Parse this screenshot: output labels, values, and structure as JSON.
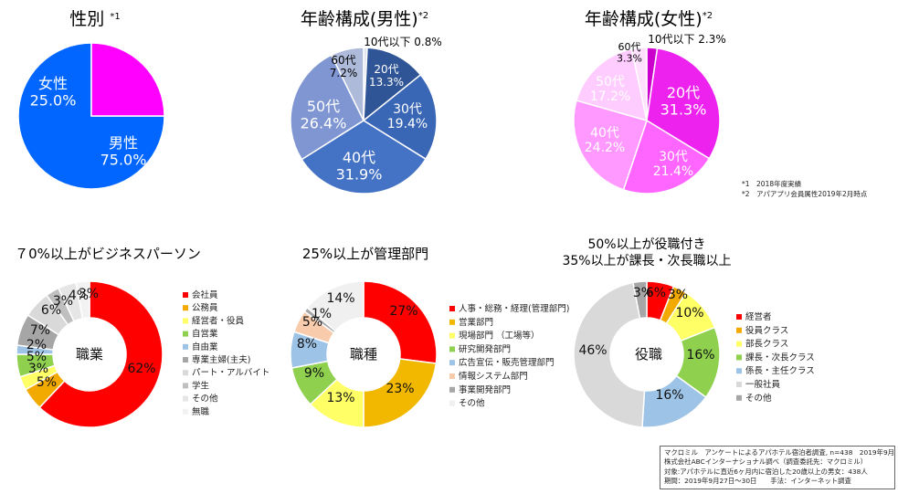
{
  "colors": {
    "pie1": [
      "#0066ff",
      "#ff00ff"
    ],
    "pie2": [
      "#2f5597",
      "#2f5597",
      "#3a66b6",
      "#4472c4",
      "#7f96d2",
      "#aebad9",
      "#d0d8ea"
    ],
    "pie3": [
      "#cc00cc",
      "#ee22ee",
      "#ff66ff",
      "#ff99ff",
      "#ffccff",
      "#ffe0ff"
    ],
    "job": [
      "#ff0000",
      "#f2a900",
      "#ffff66",
      "#8fd14f",
      "#9dc3e6",
      "#a6a6a6",
      "#d9d9d9",
      "#bfbfbf",
      "#e6e6e6",
      "#f2f2f2"
    ],
    "dept": [
      "#ff0000",
      "#f2b800",
      "#ffff66",
      "#8fd14f",
      "#9dc3e6",
      "#f8cbad",
      "#a6a6a6",
      "#f0f0f0"
    ],
    "role": [
      "#ff0000",
      "#f2a900",
      "#ffff66",
      "#8fd14f",
      "#9dc3e6",
      "#d9d9d9",
      "#a6a6a6"
    ]
  },
  "chart_data": [
    {
      "type": "pie",
      "title": "性別",
      "title_mark": "*1",
      "categories": [
        "男性",
        "女性"
      ],
      "values": [
        75.0,
        25.0
      ],
      "value_labels": [
        "75.0%",
        "25.0%"
      ]
    },
    {
      "type": "pie",
      "title": "年齢構成(男性)",
      "title_mark": "*2",
      "categories": [
        "10代以下",
        "20代",
        "30代",
        "40代",
        "50代",
        "60代"
      ],
      "values": [
        0.8,
        13.3,
        19.4,
        31.9,
        26.4,
        7.2
      ],
      "value_labels": [
        "0.8%",
        "13.3%",
        "19.4%",
        "31.9%",
        "26.4%",
        "7.2%"
      ]
    },
    {
      "type": "pie",
      "title": "年齢構成(女性)",
      "title_mark": "*2",
      "categories": [
        "10代以下",
        "20代",
        "30代",
        "40代",
        "50代",
        "60代"
      ],
      "values": [
        2.3,
        31.3,
        21.4,
        24.2,
        17.2,
        3.3
      ],
      "value_labels": [
        "2.3%",
        "31.3%",
        "21.4%",
        "24.2%",
        "17.2%",
        "3.3%"
      ]
    },
    {
      "type": "pie",
      "subtype": "donut",
      "title": "７0%以上がビジネスパーソン",
      "center_label": "職業",
      "categories": [
        "会社員",
        "公務員",
        "経営者・役員",
        "自営業",
        "自由業",
        "専業主婦(主夫)",
        "パート・アルバイト",
        "学生",
        "その他",
        "無職"
      ],
      "values": [
        62,
        5,
        3,
        5,
        2,
        7,
        6,
        3,
        4,
        3
      ],
      "value_labels": [
        "62%",
        "5%",
        "3%",
        "5%",
        "2%",
        "7%",
        "6%",
        "3%",
        "4%",
        "3%"
      ],
      "legend_position": "right"
    },
    {
      "type": "pie",
      "subtype": "donut",
      "title": "25%以上が管理部門",
      "center_label": "職種",
      "categories": [
        "人事・総務・経理(管理部門)",
        "営業部門",
        "現場部門 （工場等）",
        "研究開発部門",
        "広告宣伝・販売管理部門",
        "情報システム部門",
        "事業開発部門",
        "その他"
      ],
      "values": [
        27,
        23,
        13,
        9,
        8,
        5,
        1,
        14
      ],
      "value_labels": [
        "27%",
        "23%",
        "13%",
        "9%",
        "8%",
        "5%",
        "1%",
        "14%"
      ],
      "legend_position": "right"
    },
    {
      "type": "pie",
      "subtype": "donut",
      "title": "50%以上が役職付き",
      "title2": "35%以上が課長・次長職以上",
      "center_label": "役職",
      "categories": [
        "経営者",
        "役員クラス",
        "部長クラス",
        "課長・次長クラス",
        "係長・主任クラス",
        "一般社員",
        "その他"
      ],
      "values": [
        6,
        3,
        10,
        16,
        16,
        46,
        3
      ],
      "value_labels": [
        "6%",
        "3%",
        "10%",
        "16%",
        "16%",
        "46%",
        "3%"
      ],
      "legend_position": "right"
    }
  ],
  "notes": [
    "*1　2018年度実績",
    "*2　アパアプリ会員属性2019年2月時点"
  ],
  "source": [
    "マクロミル　アンケートによるアパホテル宿泊者調査, n=438　2019年9月",
    "株式会社ABCインターナショナル調べ（調査委託先：マクロミル）",
    "対象:アパホテルに直近6ヶ月内に宿泊した20歳以上の男女：438人",
    "期間：2019年9月27日～30日　　手法：インターネット調査"
  ]
}
